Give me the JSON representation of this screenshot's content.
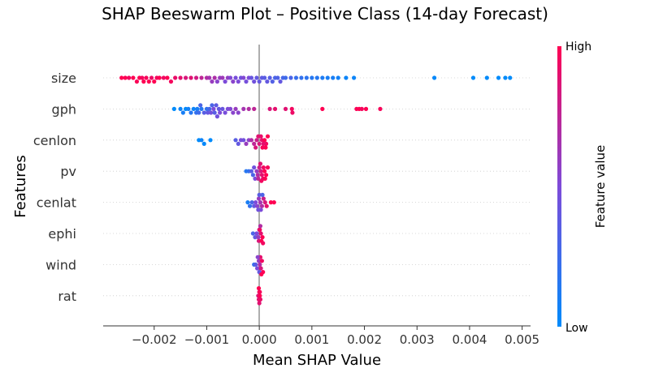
{
  "chart_data": {
    "type": "scatter",
    "subtype": "beeswarm",
    "title": "SHAP Beeswarm Plot – Positive Class (14-day Forecast)",
    "xlabel": "Mean SHAP Value",
    "ylabel": "Features",
    "xlim": [
      -0.00297,
      0.00516
    ],
    "x_ticks": [
      -0.002,
      -0.001,
      0.0,
      0.001,
      0.002,
      0.003,
      0.004,
      0.005
    ],
    "x_tick_labels": [
      "−0.002",
      "−0.001",
      "0.000",
      "0.001",
      "0.002",
      "0.003",
      "0.004",
      "0.005"
    ],
    "features": [
      "size",
      "gph",
      "cenlon",
      "pv",
      "cenlat",
      "ephi",
      "wind",
      "rat"
    ],
    "colorbar": {
      "label": "Feature value",
      "high_label": "High",
      "low_label": "Low",
      "low_color": "#008bfb",
      "high_color": "#ff0052"
    },
    "grid": "dotted horizontal",
    "series": [
      {
        "feature": "size",
        "points": [
          {
            "x": -0.00262,
            "v": 1.0
          },
          {
            "x": -0.00255,
            "v": 1.0
          },
          {
            "x": -0.00248,
            "v": 0.95
          },
          {
            "x": -0.0024,
            "v": 1.0
          },
          {
            "x": -0.00233,
            "v": 0.98
          },
          {
            "x": -0.00228,
            "v": 1.0
          },
          {
            "x": -0.00223,
            "v": 0.96
          },
          {
            "x": -0.0022,
            "v": 1.0
          },
          {
            "x": -0.00215,
            "v": 0.97
          },
          {
            "x": -0.0021,
            "v": 1.0
          },
          {
            "x": -0.00205,
            "v": 0.93
          },
          {
            "x": -0.002,
            "v": 1.0
          },
          {
            "x": -0.00195,
            "v": 0.96
          },
          {
            "x": -0.0019,
            "v": 1.0
          },
          {
            "x": -0.00182,
            "v": 0.94
          },
          {
            "x": -0.00175,
            "v": 1.0
          },
          {
            "x": -0.00168,
            "v": 0.96
          },
          {
            "x": -0.0016,
            "v": 0.92
          },
          {
            "x": -0.0015,
            "v": 0.9
          },
          {
            "x": -0.0014,
            "v": 0.85
          },
          {
            "x": -0.0013,
            "v": 0.88
          },
          {
            "x": -0.0012,
            "v": 0.82
          },
          {
            "x": -0.0011,
            "v": 0.75
          },
          {
            "x": -0.001,
            "v": 0.7
          },
          {
            "x": -0.00095,
            "v": 0.65
          },
          {
            "x": -0.0009,
            "v": 0.6
          },
          {
            "x": -0.00085,
            "v": 0.68
          },
          {
            "x": -0.0008,
            "v": 0.55
          },
          {
            "x": -0.00075,
            "v": 0.6
          },
          {
            "x": -0.0007,
            "v": 0.62
          },
          {
            "x": -0.00065,
            "v": 0.5
          },
          {
            "x": -0.0006,
            "v": 0.58
          },
          {
            "x": -0.00055,
            "v": 0.52
          },
          {
            "x": -0.0005,
            "v": 0.55
          },
          {
            "x": -0.00045,
            "v": 0.48
          },
          {
            "x": -0.0004,
            "v": 0.5
          },
          {
            "x": -0.00035,
            "v": 0.45
          },
          {
            "x": -0.0003,
            "v": 0.52
          },
          {
            "x": -0.00025,
            "v": 0.47
          },
          {
            "x": -0.0002,
            "v": 0.5
          },
          {
            "x": -0.00015,
            "v": 0.42
          },
          {
            "x": -0.0001,
            "v": 0.45
          },
          {
            "x": -5e-05,
            "v": 0.4
          },
          {
            "x": 0.0,
            "v": 0.4
          },
          {
            "x": 5e-05,
            "v": 0.38
          },
          {
            "x": 0.0001,
            "v": 0.36
          },
          {
            "x": 0.00015,
            "v": 0.4
          },
          {
            "x": 0.0002,
            "v": 0.35
          },
          {
            "x": 0.00025,
            "v": 0.33
          },
          {
            "x": 0.0003,
            "v": 0.3
          },
          {
            "x": 0.00035,
            "v": 0.32
          },
          {
            "x": 0.0004,
            "v": 0.4
          },
          {
            "x": 0.00045,
            "v": 0.28
          },
          {
            "x": 0.0005,
            "v": 0.25
          },
          {
            "x": 0.0006,
            "v": 0.3
          },
          {
            "x": 0.0007,
            "v": 0.22
          },
          {
            "x": 0.0008,
            "v": 0.2
          },
          {
            "x": 0.0009,
            "v": 0.18
          },
          {
            "x": 0.001,
            "v": 0.15
          },
          {
            "x": 0.0011,
            "v": 0.15
          },
          {
            "x": 0.0012,
            "v": 0.12
          },
          {
            "x": 0.0013,
            "v": 0.1
          },
          {
            "x": 0.0014,
            "v": 0.1
          },
          {
            "x": 0.0015,
            "v": 0.08
          },
          {
            "x": 0.00165,
            "v": 0.05
          },
          {
            "x": 0.0018,
            "v": 0.05
          },
          {
            "x": 0.00333,
            "v": 0.02
          },
          {
            "x": 0.00407,
            "v": 0.0
          },
          {
            "x": 0.00433,
            "v": 0.01
          },
          {
            "x": 0.00455,
            "v": 0.0
          },
          {
            "x": 0.00468,
            "v": 0.0
          },
          {
            "x": 0.00477,
            "v": 0.0
          }
        ]
      },
      {
        "feature": "gph",
        "points": [
          {
            "x": -0.00162,
            "v": 0.0
          },
          {
            "x": -0.0015,
            "v": 0.05
          },
          {
            "x": -0.00145,
            "v": 0.1
          },
          {
            "x": -0.0014,
            "v": 0.0
          },
          {
            "x": -0.00135,
            "v": 0.08
          },
          {
            "x": -0.0013,
            "v": 0.15
          },
          {
            "x": -0.00125,
            "v": 0.05
          },
          {
            "x": -0.0012,
            "v": 0.2
          },
          {
            "x": -0.00118,
            "v": 0.1
          },
          {
            "x": -0.00115,
            "v": 0.25
          },
          {
            "x": -0.00112,
            "v": 0.3
          },
          {
            "x": -0.0011,
            "v": 0.15
          },
          {
            "x": -0.00105,
            "v": 0.35
          },
          {
            "x": -0.001,
            "v": 0.2
          },
          {
            "x": -0.00098,
            "v": 0.4
          },
          {
            "x": -0.00095,
            "v": 0.28
          },
          {
            "x": -0.00092,
            "v": 0.45
          },
          {
            "x": -0.0009,
            "v": 0.3
          },
          {
            "x": -0.00087,
            "v": 0.5
          },
          {
            "x": -0.00085,
            "v": 0.35
          },
          {
            "x": -0.00082,
            "v": 0.38
          },
          {
            "x": -0.0008,
            "v": 0.45
          },
          {
            "x": -0.00077,
            "v": 0.4
          },
          {
            "x": -0.00075,
            "v": 0.5
          },
          {
            "x": -0.0007,
            "v": 0.42
          },
          {
            "x": -0.00065,
            "v": 0.48
          },
          {
            "x": -0.0006,
            "v": 0.5
          },
          {
            "x": -0.00055,
            "v": 0.52
          },
          {
            "x": -0.0005,
            "v": 0.55
          },
          {
            "x": -0.00045,
            "v": 0.6
          },
          {
            "x": -0.0004,
            "v": 0.55
          },
          {
            "x": -0.0003,
            "v": 0.65
          },
          {
            "x": -0.0002,
            "v": 0.7
          },
          {
            "x": -0.0001,
            "v": 0.75
          },
          {
            "x": 0.0002,
            "v": 0.85
          },
          {
            "x": 0.0003,
            "v": 0.9
          },
          {
            "x": 0.0005,
            "v": 0.88
          },
          {
            "x": 0.00062,
            "v": 0.95
          },
          {
            "x": 0.00063,
            "v": 0.93
          },
          {
            "x": 0.0012,
            "v": 1.0
          },
          {
            "x": 0.00185,
            "v": 0.98
          },
          {
            "x": 0.0019,
            "v": 1.0
          },
          {
            "x": 0.00195,
            "v": 0.96
          },
          {
            "x": 0.00203,
            "v": 1.0
          },
          {
            "x": 0.0023,
            "v": 0.97
          }
        ]
      },
      {
        "feature": "cenlon",
        "points": [
          {
            "x": -0.00115,
            "v": 0.0
          },
          {
            "x": -0.0011,
            "v": 0.05
          },
          {
            "x": -0.00105,
            "v": 0.02
          },
          {
            "x": -0.00093,
            "v": 0.0
          },
          {
            "x": -0.00045,
            "v": 0.35
          },
          {
            "x": -0.0004,
            "v": 0.4
          },
          {
            "x": -0.00035,
            "v": 0.5
          },
          {
            "x": -0.0003,
            "v": 0.45
          },
          {
            "x": -0.00025,
            "v": 0.6
          },
          {
            "x": -0.0002,
            "v": 0.55
          },
          {
            "x": -0.00015,
            "v": 0.7
          },
          {
            "x": -0.0001,
            "v": 0.75
          },
          {
            "x": -5e-05,
            "v": 0.8
          },
          {
            "x": 0.0,
            "v": 0.85
          },
          {
            "x": 5e-05,
            "v": 0.9
          },
          {
            "x": 0.0001,
            "v": 1.0
          },
          {
            "x": 0.00013,
            "v": 0.95
          },
          {
            "x": 0.00016,
            "v": 1.0
          },
          {
            "x": 8e-05,
            "v": 0.9
          },
          {
            "x": 3e-05,
            "v": 0.92
          },
          {
            "x": -2e-05,
            "v": 0.88
          },
          {
            "x": -7e-05,
            "v": 0.85
          },
          {
            "x": 0.00012,
            "v": 1.0
          },
          {
            "x": 6e-05,
            "v": 0.97
          }
        ]
      },
      {
        "feature": "pv",
        "points": [
          {
            "x": -0.00025,
            "v": 0.15
          },
          {
            "x": -0.0002,
            "v": 0.2
          },
          {
            "x": -0.00015,
            "v": 0.35
          },
          {
            "x": -0.00012,
            "v": 0.3
          },
          {
            "x": -0.0001,
            "v": 0.45
          },
          {
            "x": -8e-05,
            "v": 0.5
          },
          {
            "x": -5e-05,
            "v": 0.6
          },
          {
            "x": -3e-05,
            "v": 0.7
          },
          {
            "x": 0.0,
            "v": 0.8
          },
          {
            "x": 3e-05,
            "v": 0.85
          },
          {
            "x": 5e-05,
            "v": 0.9
          },
          {
            "x": 8e-05,
            "v": 0.95
          },
          {
            "x": 0.0001,
            "v": 1.0
          },
          {
            "x": 0.00013,
            "v": 1.0
          },
          {
            "x": 0.00016,
            "v": 0.97
          },
          {
            "x": 7e-05,
            "v": 0.92
          },
          {
            "x": 2e-05,
            "v": 0.88
          },
          {
            "x": -2e-05,
            "v": 0.75
          },
          {
            "x": 0.00011,
            "v": 1.0
          },
          {
            "x": 4e-05,
            "v": 0.95
          }
        ]
      },
      {
        "feature": "cenlat",
        "points": [
          {
            "x": -0.00022,
            "v": 0.1
          },
          {
            "x": -0.00018,
            "v": 0.2
          },
          {
            "x": -0.00014,
            "v": 0.3
          },
          {
            "x": -0.0001,
            "v": 0.4
          },
          {
            "x": -7e-05,
            "v": 0.5
          },
          {
            "x": -4e-05,
            "v": 0.55
          },
          {
            "x": -1e-05,
            "v": 0.6
          },
          {
            "x": 2e-05,
            "v": 0.65
          },
          {
            "x": 5e-05,
            "v": 0.7
          },
          {
            "x": 8e-05,
            "v": 0.8
          },
          {
            "x": 0.00011,
            "v": 0.85
          },
          {
            "x": 0.00014,
            "v": 0.9
          },
          {
            "x": 0.00022,
            "v": 1.0
          },
          {
            "x": 0.00028,
            "v": 1.0
          },
          {
            "x": 3e-05,
            "v": 0.5
          },
          {
            "x": -2e-05,
            "v": 0.45
          },
          {
            "x": 6e-05,
            "v": 0.3
          },
          {
            "x": 0.0,
            "v": 0.35
          }
        ]
      },
      {
        "feature": "ephi",
        "points": [
          {
            "x": -0.00012,
            "v": 0.3
          },
          {
            "x": -8e-05,
            "v": 0.4
          },
          {
            "x": -5e-05,
            "v": 0.5
          },
          {
            "x": -2e-05,
            "v": 0.6
          },
          {
            "x": 0.0,
            "v": 0.8
          },
          {
            "x": 3e-05,
            "v": 0.9
          },
          {
            "x": 6e-05,
            "v": 1.0
          },
          {
            "x": 1e-05,
            "v": 0.95
          },
          {
            "x": -1e-05,
            "v": 0.85
          },
          {
            "x": 4e-05,
            "v": 1.0
          },
          {
            "x": 2e-05,
            "v": 0.7
          },
          {
            "x": 7e-05,
            "v": 0.95
          }
        ]
      },
      {
        "feature": "wind",
        "points": [
          {
            "x": -0.0001,
            "v": 0.2
          },
          {
            "x": -7e-05,
            "v": 0.35
          },
          {
            "x": -4e-05,
            "v": 0.5
          },
          {
            "x": -1e-05,
            "v": 0.6
          },
          {
            "x": 1e-05,
            "v": 0.7
          },
          {
            "x": 3e-05,
            "v": 0.85
          },
          {
            "x": 5e-05,
            "v": 0.95
          },
          {
            "x": 7e-05,
            "v": 1.0
          },
          {
            "x": 0.0,
            "v": 0.4
          },
          {
            "x": 2e-05,
            "v": 0.9
          },
          {
            "x": -3e-05,
            "v": 0.55
          },
          {
            "x": 4e-05,
            "v": 1.0
          }
        ]
      },
      {
        "feature": "rat",
        "points": [
          {
            "x": -2e-05,
            "v": 0.85
          },
          {
            "x": -1e-05,
            "v": 0.9
          },
          {
            "x": 0.0,
            "v": 0.95
          },
          {
            "x": 1e-05,
            "v": 1.0
          },
          {
            "x": 2e-05,
            "v": 0.92
          },
          {
            "x": 0.0,
            "v": 0.88
          },
          {
            "x": -1e-05,
            "v": 1.0
          },
          {
            "x": 1e-05,
            "v": 0.97
          }
        ]
      }
    ]
  }
}
